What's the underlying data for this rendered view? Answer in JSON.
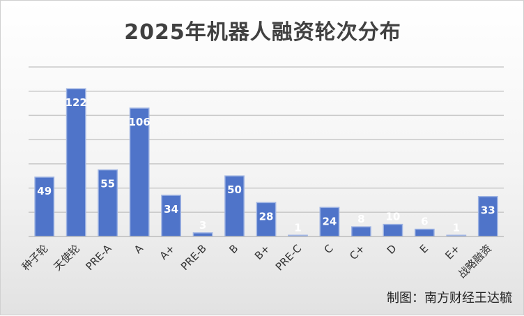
{
  "chart_data": {
    "type": "bar",
    "title": "2025年机器人融资轮次分布",
    "xlabel": "",
    "ylabel": "",
    "categories": [
      "种子轮",
      "天使轮",
      "PRE-A",
      "A",
      "A+",
      "PRE-B",
      "B",
      "B+",
      "PRE-C",
      "C",
      "C+",
      "D",
      "E",
      "E+",
      "战略融资"
    ],
    "values": [
      49,
      122,
      55,
      106,
      34,
      3,
      50,
      28,
      1,
      24,
      8,
      10,
      6,
      1,
      33
    ],
    "ylim": [
      0,
      140
    ],
    "grid": true,
    "legend": "none",
    "colors": {
      "bar": "#4f74c9",
      "bar_stroke": "#9fb4e3",
      "label": "#ffffff",
      "grid": "#c9c9c9"
    }
  },
  "source_note": "制图：南方财经王达毓"
}
